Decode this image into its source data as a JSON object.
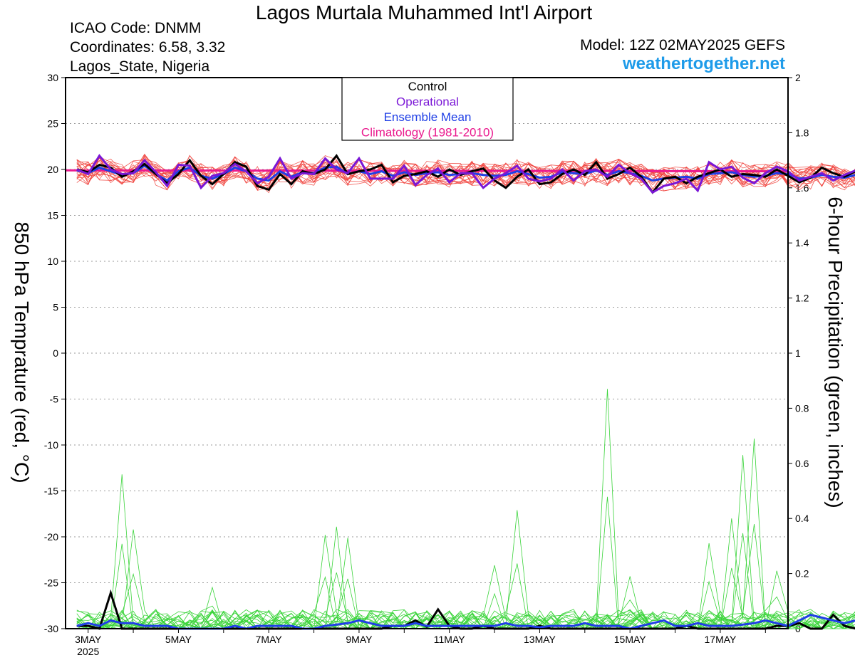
{
  "header": {
    "title": "Lagos Murtala Muhammed Int'l Airport",
    "icao": "ICAO Code: DNMM",
    "coordinates": "Coordinates: 6.58, 3.32",
    "location": "Lagos_State, Nigeria",
    "model": "Model: 12Z 02MAY2025 GEFS",
    "site": "weathertogether.net"
  },
  "colors": {
    "control": "#000000",
    "operational": "#7a16d6",
    "ensemble_mean": "#1f3fe6",
    "climatology": "#ea1a8e",
    "members_temp": "#f0403a",
    "members_precip": "#3ad43a",
    "site": "#1e9be9"
  },
  "chart_data": {
    "type": "line",
    "ylabel": "850 hPa Temprature (red, °C)",
    "y2label": "6-hour Precipitation (green, inches)",
    "ylim": [
      -30,
      30
    ],
    "y2lim": [
      0,
      2
    ],
    "yticks": [
      30,
      25,
      20,
      15,
      10,
      5,
      0,
      -5,
      -10,
      -15,
      -20,
      -25,
      -30
    ],
    "y2ticks": [
      "2",
      "1.8",
      "1.6",
      "1.4",
      "1.2",
      "1",
      "0.8",
      "0.6",
      "0.4",
      "0.2",
      "0"
    ],
    "xrange_days": [
      2.5,
      18.5
    ],
    "x_unit": "day of May 2025 (UTC)",
    "xtick_labels": [
      {
        "day": 3,
        "label": "3MAY",
        "sub": "2025"
      },
      {
        "day": 5,
        "label": "5MAY"
      },
      {
        "day": 7,
        "label": "7MAY"
      },
      {
        "day": 9,
        "label": "9MAY"
      },
      {
        "day": 11,
        "label": "11MAY"
      },
      {
        "day": 13,
        "label": "13MAY"
      },
      {
        "day": 15,
        "label": "15MAY"
      },
      {
        "day": 17,
        "label": "17MAY"
      }
    ],
    "grid": "horizontal dotted",
    "legend": {
      "position": "top-center",
      "entries": [
        "Control",
        "Operational",
        "Ensemble Mean",
        "Climatology (1981-2010)"
      ]
    },
    "time_start_day": 2.75,
    "time_step_day": 0.25,
    "series": [
      {
        "name": "Control",
        "axis": "temp",
        "values": [
          20,
          19.7,
          20.5,
          20.2,
          19.2,
          19.8,
          20.6,
          19.5,
          18.5,
          19.5,
          21,
          19.3,
          18.4,
          19.5,
          20.8,
          20.3,
          18.2,
          17.8,
          19.5,
          18.4,
          19.8,
          19.5,
          20,
          21.5,
          19.5,
          19.8,
          20,
          20.5,
          18.6,
          19.3,
          19.5,
          19.8,
          19.2,
          20,
          19.4,
          19.8,
          20.1,
          18.8,
          18,
          19.2,
          20,
          18.4,
          18.6,
          19.5,
          20,
          19.4,
          20.8,
          19,
          19.5,
          20.2,
          19.2,
          17.5,
          19,
          19.2,
          18.5,
          19.2,
          19.6,
          20,
          19.2,
          19.5,
          19.4,
          19.2,
          20,
          19.3,
          18.6,
          19.1,
          20.2,
          19.6,
          19.2,
          19.8
        ]
      },
      {
        "name": "Operational",
        "axis": "temp",
        "values": [
          20,
          19.5,
          21.5,
          20,
          19.5,
          19.6,
          21,
          19.7,
          18.2,
          20.5,
          20.4,
          18,
          19.3,
          19.6,
          20.6,
          19.8,
          18.5,
          19.2,
          21.2,
          19,
          19.6,
          19.5,
          21.2,
          20,
          19.6,
          21.2,
          19,
          19,
          19,
          20.4,
          18.3,
          19.4,
          20.1,
          18.6,
          19.6,
          19.6,
          18,
          19,
          19.6,
          20.4,
          19,
          18.7,
          19,
          20,
          18.8,
          19.8,
          20,
          19.2,
          20.5,
          19.6,
          19,
          17.5,
          18.2,
          18.5,
          19,
          17.7,
          20.8,
          20,
          20.3,
          19.1,
          18.5,
          19.6,
          20.3,
          19.8,
          18.8,
          19.2,
          19.6,
          18.8,
          19.4,
          19.9
        ]
      },
      {
        "name": "Ensemble Mean",
        "axis": "temp",
        "values": [
          19.9,
          19.6,
          20.2,
          19.8,
          19.4,
          19.6,
          20.4,
          19.5,
          18.8,
          19.8,
          20.2,
          19.3,
          19,
          19.5,
          20.2,
          19.8,
          19,
          18.8,
          19.8,
          19.2,
          19.7,
          19.6,
          20.2,
          20.3,
          19.5,
          19.8,
          19.5,
          19.8,
          19.3,
          19.7,
          19.4,
          19.6,
          19.7,
          19.4,
          19.5,
          19.6,
          19.4,
          19.3,
          19.4,
          19.8,
          19.5,
          19.1,
          19.2,
          19.7,
          19.6,
          19.5,
          19.9,
          19.4,
          19.8,
          19.6,
          19.3,
          18.8,
          19,
          19.1,
          19.2,
          19,
          19.5,
          19.6,
          19.7,
          19.4,
          19.2,
          19.3,
          19.6,
          19.5,
          19,
          19.1,
          19.4,
          19.2,
          19.1,
          19.4
        ]
      },
      {
        "name": "Climatology (1981-2010)",
        "axis": "temp",
        "values": [
          19.9,
          19.8
        ]
      }
    ],
    "member_count": 20,
    "member_temp_spread_deg": 1.8,
    "precip": {
      "axis": "precip",
      "control": [
        0.01,
        0.01,
        0,
        0.13,
        0,
        0,
        0,
        0,
        0,
        0,
        0,
        0,
        0,
        0,
        0,
        0,
        0,
        0,
        0,
        0,
        0,
        0,
        0,
        0,
        0,
        0,
        0,
        0,
        0.01,
        0.01,
        0.03,
        0.007,
        0.07,
        0.01,
        0,
        0,
        0.01,
        0,
        0,
        0,
        0,
        0.01,
        0,
        0,
        0,
        0,
        0,
        0,
        0,
        0,
        0,
        0,
        0,
        0,
        0.01,
        0,
        0,
        0,
        0,
        0,
        0,
        0,
        0.01,
        0.01,
        0.02,
        0,
        0,
        0.05,
        0.01,
        0
      ],
      "ensemble_mean": [
        0.01,
        0.02,
        0.01,
        0.03,
        0.02,
        0.02,
        0.01,
        0.01,
        0.01,
        0,
        0,
        0,
        0,
        0,
        0.01,
        0,
        0.01,
        0.01,
        0.01,
        0.01,
        0,
        0,
        0.01,
        0.015,
        0.02,
        0.03,
        0.02,
        0.01,
        0.01,
        0.01,
        0.02,
        0.01,
        0.01,
        0.01,
        0.01,
        0.01,
        0.01,
        0.01,
        0.02,
        0.01,
        0.01,
        0.005,
        0.01,
        0.01,
        0.01,
        0.02,
        0.01,
        0.01,
        0.01,
        0,
        0.01,
        0.02,
        0.03,
        0.01,
        0.01,
        0.02,
        0.01,
        0.01,
        0.01,
        0.015,
        0.02,
        0.03,
        0.02,
        0.01,
        0.03,
        0.05,
        0.04,
        0.03,
        0.02,
        0.03
      ],
      "member_peaks": [
        {
          "day": 3.75,
          "value": 0.56
        },
        {
          "day": 4.0,
          "value": 0.36
        },
        {
          "day": 8.25,
          "value": 0.34
        },
        {
          "day": 8.5,
          "value": 0.37
        },
        {
          "day": 8.75,
          "value": 0.33
        },
        {
          "day": 12.5,
          "value": 0.43
        },
        {
          "day": 14.5,
          "value": 0.87
        },
        {
          "day": 17.5,
          "value": 0.63
        },
        {
          "day": 17.75,
          "value": 0.69
        },
        {
          "day": 17.25,
          "value": 0.4
        },
        {
          "day": 16.75,
          "value": 0.31
        },
        {
          "day": 12.0,
          "value": 0.23
        },
        {
          "day": 18.25,
          "value": 0.21
        },
        {
          "day": 5.75,
          "value": 0.15
        },
        {
          "day": 15.0,
          "value": 0.19
        }
      ]
    }
  }
}
